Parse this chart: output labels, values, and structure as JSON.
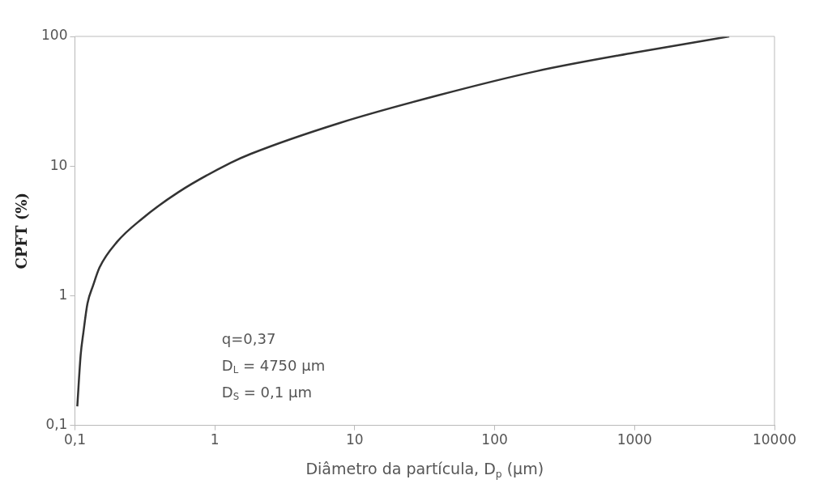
{
  "chart_data": {
    "type": "line",
    "xlabel": "Diâmetro da partícula, D$_{p}$ (µm)",
    "ylabel": "CPFT (%)",
    "log": "xy",
    "grid": false,
    "marker": "none",
    "line_style": "solid",
    "xlim": [
      0.1,
      10000
    ],
    "xticks": [
      {
        "value": 0.1,
        "label": "0,1"
      },
      1,
      10,
      100,
      1000,
      10000
    ],
    "ylim": [
      0.1,
      100
    ],
    "yticks": [
      {
        "value": 0.1,
        "label": "0,1"
      },
      1,
      10,
      100
    ],
    "x": [
      0.104,
      0.11,
      0.115,
      0.123,
      0.135,
      0.15,
      0.2,
      0.3,
      0.55,
      1.3,
      1.8,
      7.8,
      39,
      200,
      1000,
      4750
    ],
    "series": [
      {
        "color": "#333333",
        "values": [
          0.14,
          0.35,
          0.52,
          0.87,
          1.2,
          1.65,
          2.6,
          3.9,
          6.3,
          10.6,
          12.4,
          21.5,
          35,
          54,
          75,
          100
        ]
      }
    ],
    "annotations": [
      "q=0,37",
      "D$_{L}$ = 4750 µm",
      "D$_{S}$ = 0,1 µm"
    ]
  }
}
